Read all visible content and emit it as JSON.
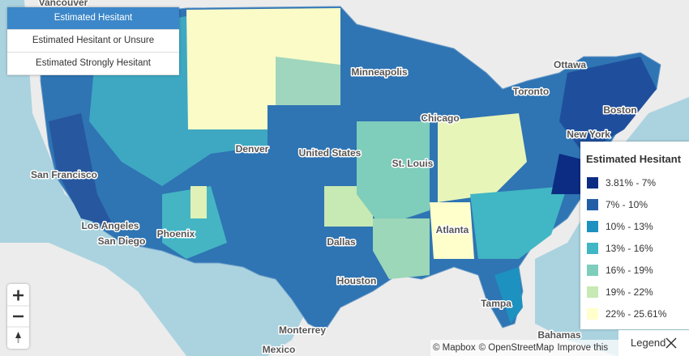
{
  "layer_buttons": [
    "Estimated Hesitant",
    "Estimated Hesitant or Unsure",
    "Estimated Strongly Hesitant"
  ],
  "legend": {
    "title": "Estimated Hesitant",
    "items": [
      {
        "label": "3.81% - 7%",
        "color": "#0c2c84"
      },
      {
        "label": "7% - 10%",
        "color": "#225ea8"
      },
      {
        "label": "10% - 13%",
        "color": "#1d91c0"
      },
      {
        "label": "13% - 16%",
        "color": "#41b6c4"
      },
      {
        "label": "16% - 19%",
        "color": "#7fcdbb"
      },
      {
        "label": "19% - 22%",
        "color": "#c7e9b4"
      },
      {
        "label": "22% - 25.61%",
        "color": "#ffffcc"
      }
    ]
  },
  "place_labels": [
    "Vancouver",
    "Ottawa",
    "Minneapolis",
    "Toronto",
    "Chicago",
    "Boston",
    "New York",
    "Denver",
    "United States",
    "San Francisco",
    "St. Louis",
    "Los Angeles",
    "San Diego",
    "Phoenix",
    "Atlanta",
    "Dallas",
    "Houston",
    "Tampa",
    "Monterrey",
    "Mexico",
    "Bahamas"
  ],
  "attribution": [
    "© Mapbox",
    "© OpenStreetMap",
    "Improve this map"
  ],
  "legend_toggle": "Legend"
}
